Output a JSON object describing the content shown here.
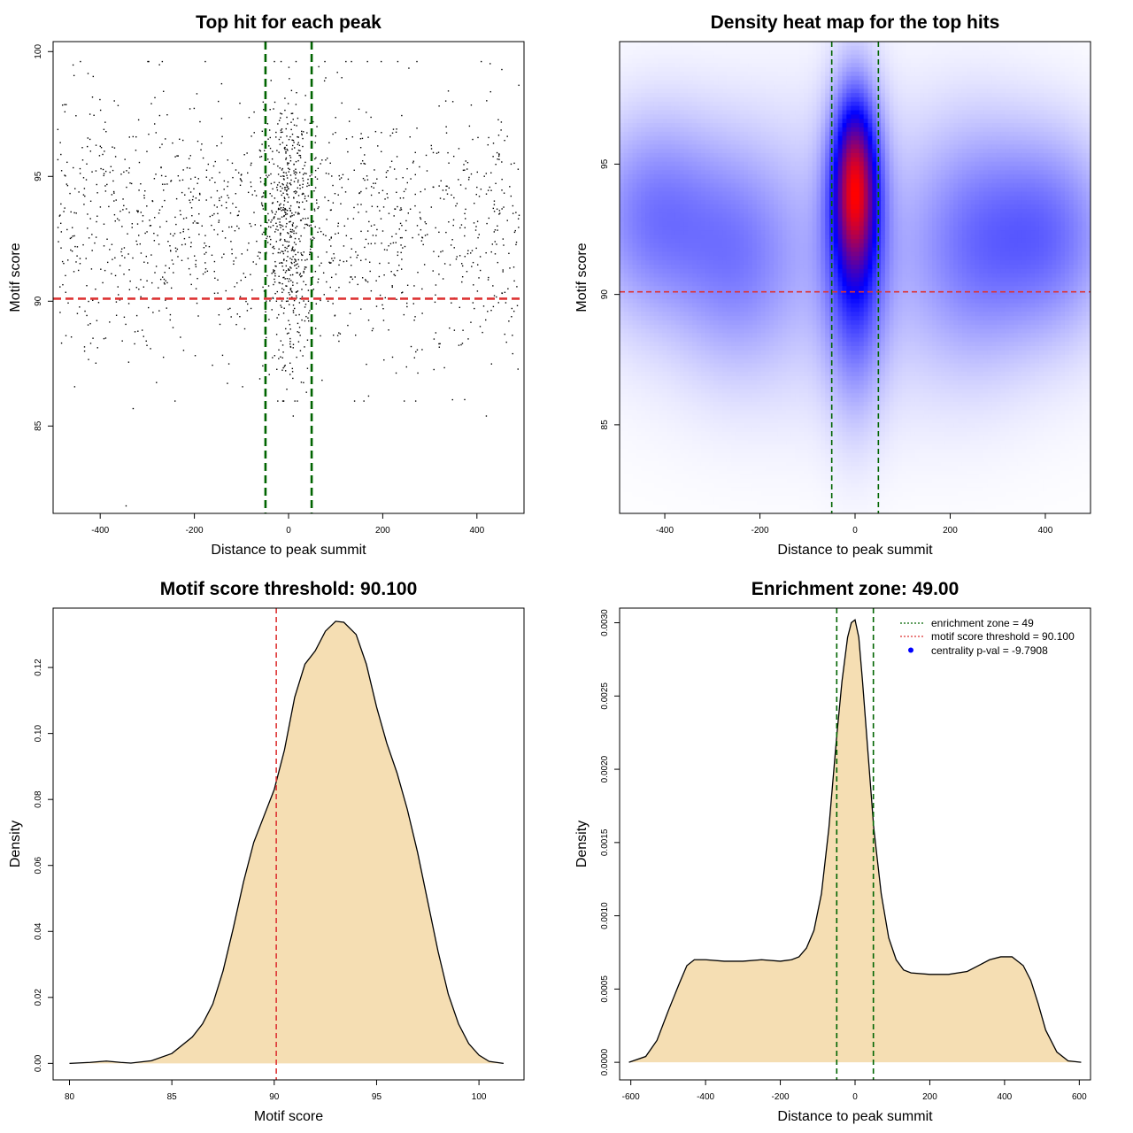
{
  "colors": {
    "threshold": "#dd3333",
    "zone": "#006400",
    "fill": "#f5deb3",
    "heat_low": "#ffffff",
    "heat_mid": "#0000ff",
    "heat_high": "#ff0000",
    "points": "#000000"
  },
  "chart_data": [
    {
      "type": "scatter",
      "title": "Top hit for each peak",
      "xlabel": "Distance to peak summit",
      "ylabel": "Motif score",
      "xlim": [
        -500,
        500
      ],
      "ylim": [
        81.5,
        100.4
      ],
      "xticks": [
        -400,
        -200,
        0,
        200,
        400
      ],
      "yticks": [
        85,
        90,
        95,
        100
      ],
      "threshold_y": 90.1,
      "zone_x": [
        -49,
        49
      ],
      "n_points": 1800,
      "distribution": {
        "uniform_share": 0.72,
        "uniform_x_range": [
          -490,
          490
        ],
        "central_x_sd": 26,
        "score_mean": 93,
        "score_sd": 2.7,
        "score_range": [
          86,
          99.6
        ]
      },
      "outliers": [
        {
          "x": -345,
          "y": 81.8
        },
        {
          "x": -330,
          "y": 85.7
        },
        {
          "x": 10,
          "y": 85.4
        },
        {
          "x": 420,
          "y": 85.4
        },
        {
          "x": 270,
          "y": 86
        },
        {
          "x": 170,
          "y": 86.2
        }
      ]
    },
    {
      "type": "heatmap",
      "title": "Density heat map for the top hits",
      "xlabel": "Distance to peak summit",
      "ylabel": "Motif score",
      "xlim": [
        -495,
        495
      ],
      "ylim": [
        81.6,
        99.7
      ],
      "xticks": [
        -400,
        -200,
        0,
        200,
        400
      ],
      "yticks": [
        85,
        90,
        95
      ],
      "threshold_y": 90.1,
      "zone_x": [
        -49,
        49
      ],
      "blobs": [
        {
          "x": 0,
          "y": 94.2,
          "sx": 28,
          "sy": 2.0,
          "w": 1.0
        },
        {
          "x": 0,
          "y": 92.0,
          "sx": 40,
          "sy": 3.4,
          "w": 0.45
        },
        {
          "x": -420,
          "y": 93.0,
          "sx": 90,
          "sy": 2.4,
          "w": 0.22
        },
        {
          "x": -250,
          "y": 91.5,
          "sx": 80,
          "sy": 2.6,
          "w": 0.16
        },
        {
          "x": 250,
          "y": 92.0,
          "sx": 80,
          "sy": 2.8,
          "w": 0.16
        },
        {
          "x": 400,
          "y": 92.3,
          "sx": 90,
          "sy": 2.4,
          "w": 0.24
        },
        {
          "x": 0,
          "y": 91.5,
          "sx": 300,
          "sy": 3.6,
          "w": 0.1
        }
      ]
    },
    {
      "type": "area",
      "title": "Motif score threshold: 90.100",
      "xlabel": "Motif score",
      "ylabel": "Density",
      "xlim": [
        79.2,
        102.2
      ],
      "ylim": [
        -0.005,
        0.138
      ],
      "xticks": [
        80,
        85,
        90,
        95,
        100
      ],
      "yticks": [
        0,
        0.02,
        0.04,
        0.06,
        0.08,
        0.1,
        0.12
      ],
      "ytick_labels": [
        "0.00",
        "0.02",
        "0.04",
        "0.06",
        "0.08",
        "0.10",
        "0.12"
      ],
      "threshold_x": 90.1,
      "x": [
        80,
        81,
        81.8,
        82.5,
        83,
        84,
        85,
        86,
        86.5,
        87,
        87.5,
        88,
        88.5,
        89,
        89.5,
        90,
        90.5,
        91,
        91.5,
        92,
        92.5,
        93,
        93.4,
        94,
        94.5,
        95,
        95.5,
        96,
        96.5,
        97,
        97.5,
        98,
        98.5,
        99,
        99.5,
        100,
        100.5,
        101.2
      ],
      "y": [
        0.0,
        0.0003,
        0.0007,
        0.0003,
        0.0001,
        0.0008,
        0.003,
        0.008,
        0.012,
        0.018,
        0.028,
        0.041,
        0.055,
        0.067,
        0.075,
        0.083,
        0.095,
        0.111,
        0.121,
        0.125,
        0.131,
        0.134,
        0.1337,
        0.13,
        0.121,
        0.108,
        0.097,
        0.088,
        0.077,
        0.064,
        0.049,
        0.034,
        0.021,
        0.012,
        0.006,
        0.0025,
        0.0006,
        0.0
      ]
    },
    {
      "type": "area",
      "title": "Enrichment zone: 49.00",
      "xlabel": "Distance to peak summit",
      "ylabel": "Density",
      "xlim": [
        -630,
        630
      ],
      "ylim": [
        -0.00012,
        0.0031
      ],
      "xticks": [
        -600,
        -400,
        -200,
        0,
        200,
        400,
        600
      ],
      "yticks": [
        0,
        0.0005,
        0.001,
        0.0015,
        0.002,
        0.0025,
        0.003
      ],
      "ytick_labels": [
        "0.0000",
        "0.0005",
        "0.0010",
        "0.0015",
        "0.0020",
        "0.0025",
        "0.0030"
      ],
      "zone_x": [
        -49,
        49
      ],
      "x": [
        -605,
        -560,
        -530,
        -500,
        -470,
        -450,
        -430,
        -400,
        -350,
        -300,
        -250,
        -200,
        -170,
        -150,
        -130,
        -110,
        -90,
        -70,
        -50,
        -35,
        -20,
        -10,
        0,
        10,
        20,
        35,
        50,
        70,
        90,
        110,
        130,
        150,
        200,
        250,
        300,
        330,
        360,
        390,
        420,
        450,
        470,
        490,
        510,
        540,
        570,
        605
      ],
      "y": [
        0.0,
        4e-05,
        0.00015,
        0.00035,
        0.00054,
        0.00066,
        0.0007,
        0.0007,
        0.00069,
        0.00069,
        0.0007,
        0.00069,
        0.0007,
        0.00072,
        0.00078,
        0.0009,
        0.00115,
        0.0016,
        0.0022,
        0.0026,
        0.0029,
        0.003,
        0.00302,
        0.0029,
        0.0026,
        0.0021,
        0.0016,
        0.00115,
        0.00085,
        0.0007,
        0.00063,
        0.00061,
        0.0006,
        0.0006,
        0.00062,
        0.00066,
        0.0007,
        0.00072,
        0.00072,
        0.00066,
        0.00056,
        0.0004,
        0.00022,
        7e-05,
        1e-05,
        0.0
      ],
      "legend": {
        "position": "top-right",
        "entries": [
          {
            "label": "enrichment zone = 49",
            "style": "dotted-line",
            "color": "#006400"
          },
          {
            "label": "motif score threshold = 90.100",
            "style": "dotted-line",
            "color": "#dd3333"
          },
          {
            "label": "centrality p-val = -9.7908",
            "style": "dot",
            "color": "#0000ff"
          }
        ]
      }
    }
  ]
}
